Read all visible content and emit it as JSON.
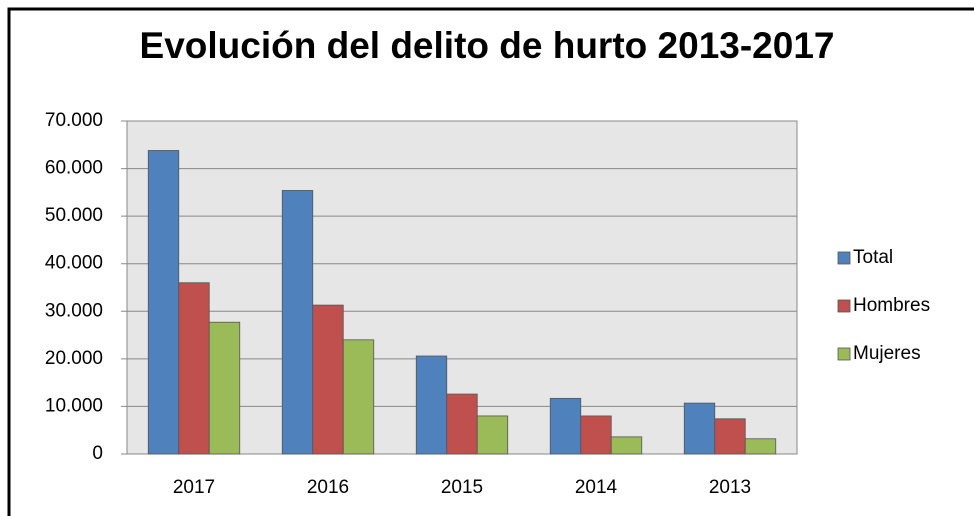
{
  "chart_data": {
    "type": "bar",
    "title": "Evolución del delito de hurto 2013-2017",
    "categories": [
      "2017",
      "2016",
      "2015",
      "2014",
      "2013"
    ],
    "series": [
      {
        "name": "Total",
        "color": "#4f81bd",
        "values": [
          63800,
          55400,
          20600,
          11700,
          10700
        ]
      },
      {
        "name": "Hombres",
        "color": "#c0504d",
        "values": [
          36000,
          31300,
          12600,
          8000,
          7400
        ]
      },
      {
        "name": "Mujeres",
        "color": "#9bbb59",
        "values": [
          27700,
          24000,
          8000,
          3600,
          3200
        ]
      }
    ],
    "ylim": [
      0,
      70000
    ],
    "yticks": [
      0,
      {
        "value": 10000,
        "label": "10.000"
      },
      {
        "value": 20000,
        "label": "20.000"
      },
      {
        "value": 30000,
        "label": "30.000"
      },
      {
        "value": 40000,
        "label": "40.000"
      },
      {
        "value": 50000,
        "label": "50.000"
      },
      {
        "value": 60000,
        "label": "60.000"
      },
      {
        "value": 70000,
        "label": "70.000"
      }
    ],
    "grid": true,
    "legend": "right"
  }
}
